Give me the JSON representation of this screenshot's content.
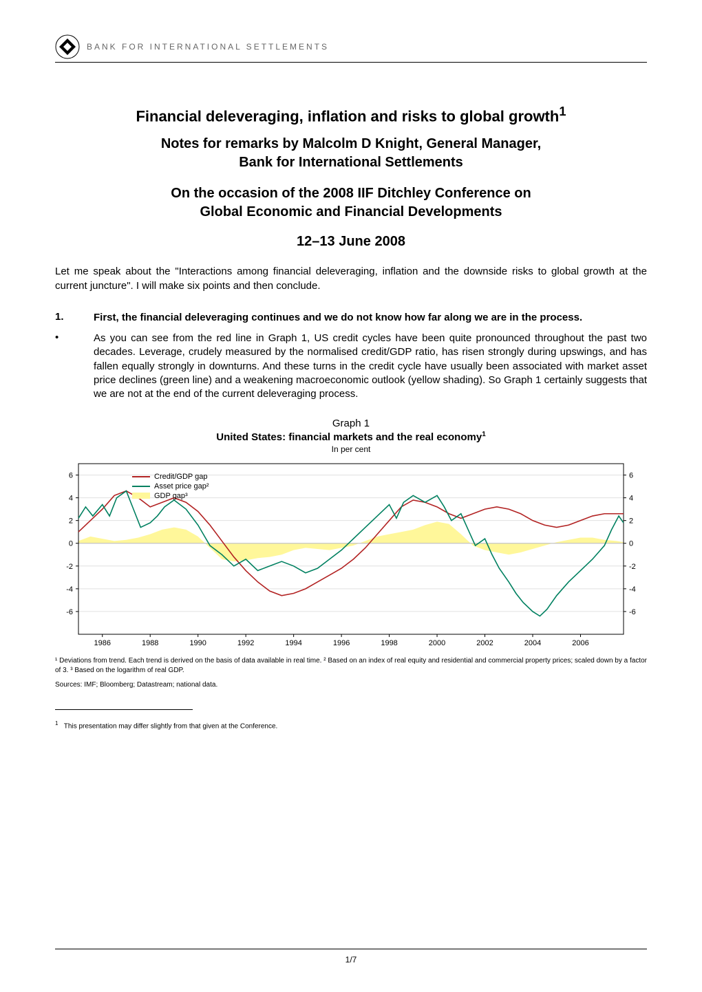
{
  "header": {
    "org_text": "BANK FOR INTERNATIONAL SETTLEMENTS"
  },
  "title": {
    "main": "Financial deleveraging, inflation and risks to global growth",
    "main_sup": "1",
    "subtitle_l1": "Notes for remarks by Malcolm D Knight, General Manager,",
    "subtitle_l2": "Bank for International Settlements",
    "occasion_l1": "On the occasion of the 2008 IIF Ditchley Conference on",
    "occasion_l2": "Global Economic and Financial Developments",
    "date": "12–13 June 2008"
  },
  "intro": "Let me speak about the \"Interactions among financial deleveraging, inflation and the downside risks to global growth at the current juncture\". I will make six points and then conclude.",
  "section1": {
    "num": "1.",
    "heading": "First, the financial deleveraging continues and we do not know how far along we are in the process.",
    "bullet": "As you can see from the red line in Graph 1, US credit cycles have been quite pronounced throughout the past two decades. Leverage, crudely measured by the normalised credit/GDP ratio, has risen strongly during upswings, and has fallen equally strongly in downturns. And these turns in the credit cycle have usually been associated with market asset price declines (green line) and a weakening macroeconomic outlook (yellow shading). So Graph 1 certainly suggests that we are not at the end of the current deleveraging process."
  },
  "graph": {
    "label": "Graph 1",
    "title": "United States: financial markets and the real economy",
    "title_sup": "1",
    "subtitle": "In per cent",
    "chart": {
      "type": "line",
      "background_color": "#ffffff",
      "plot_border_color": "#000000",
      "grid_color": "#e0e0e0",
      "axis_font_size": 11,
      "xlim": [
        1985,
        2007.8
      ],
      "x_ticks": [
        1986,
        1988,
        1990,
        1992,
        1994,
        1996,
        1998,
        2000,
        2002,
        2004,
        2006
      ],
      "ylim": [
        -8,
        7
      ],
      "y_ticks_left": [
        -6,
        -4,
        -2,
        0,
        2,
        4,
        6
      ],
      "y_ticks_right": [
        -6,
        -4,
        -2,
        0,
        2,
        4,
        6
      ],
      "gdp_band": {
        "label": "GDP gap³",
        "color": "#fff79a",
        "opacity": 1.0,
        "points": [
          [
            1985.0,
            0.2
          ],
          [
            1985.5,
            0.6
          ],
          [
            1986.0,
            0.4
          ],
          [
            1986.5,
            0.2
          ],
          [
            1987.0,
            0.3
          ],
          [
            1987.5,
            0.5
          ],
          [
            1988.0,
            0.8
          ],
          [
            1988.5,
            1.2
          ],
          [
            1989.0,
            1.4
          ],
          [
            1989.5,
            1.2
          ],
          [
            1990.0,
            0.6
          ],
          [
            1990.5,
            -0.4
          ],
          [
            1991.0,
            -1.4
          ],
          [
            1991.5,
            -1.6
          ],
          [
            1992.0,
            -1.5
          ],
          [
            1992.5,
            -1.3
          ],
          [
            1993.0,
            -1.2
          ],
          [
            1993.5,
            -1.0
          ],
          [
            1994.0,
            -0.6
          ],
          [
            1994.5,
            -0.4
          ],
          [
            1995.0,
            -0.5
          ],
          [
            1995.5,
            -0.6
          ],
          [
            1996.0,
            -0.4
          ],
          [
            1996.5,
            -0.2
          ],
          [
            1997.0,
            0.2
          ],
          [
            1997.5,
            0.6
          ],
          [
            1998.0,
            0.8
          ],
          [
            1998.5,
            1.0
          ],
          [
            1999.0,
            1.2
          ],
          [
            1999.5,
            1.6
          ],
          [
            2000.0,
            1.9
          ],
          [
            2000.5,
            1.7
          ],
          [
            2001.0,
            0.8
          ],
          [
            2001.5,
            -0.2
          ],
          [
            2002.0,
            -0.6
          ],
          [
            2002.5,
            -0.8
          ],
          [
            2003.0,
            -1.0
          ],
          [
            2003.5,
            -0.8
          ],
          [
            2004.0,
            -0.5
          ],
          [
            2004.5,
            -0.2
          ],
          [
            2005.0,
            0.1
          ],
          [
            2005.5,
            0.3
          ],
          [
            2006.0,
            0.5
          ],
          [
            2006.5,
            0.5
          ],
          [
            2007.0,
            0.3
          ],
          [
            2007.5,
            0.2
          ],
          [
            2007.8,
            0.1
          ]
        ]
      },
      "series": [
        {
          "label": "Credit/GDP gap",
          "color": "#b22222",
          "line_width": 1.6,
          "points": [
            [
              1985.0,
              1.0
            ],
            [
              1985.5,
              2.0
            ],
            [
              1986.0,
              3.0
            ],
            [
              1986.5,
              4.2
            ],
            [
              1987.0,
              4.6
            ],
            [
              1987.5,
              4.0
            ],
            [
              1988.0,
              3.2
            ],
            [
              1988.5,
              3.6
            ],
            [
              1989.0,
              4.0
            ],
            [
              1989.5,
              3.6
            ],
            [
              1990.0,
              2.8
            ],
            [
              1990.5,
              1.6
            ],
            [
              1991.0,
              0.2
            ],
            [
              1991.5,
              -1.2
            ],
            [
              1992.0,
              -2.4
            ],
            [
              1992.5,
              -3.4
            ],
            [
              1993.0,
              -4.2
            ],
            [
              1993.5,
              -4.6
            ],
            [
              1994.0,
              -4.4
            ],
            [
              1994.5,
              -4.0
            ],
            [
              1995.0,
              -3.4
            ],
            [
              1995.5,
              -2.8
            ],
            [
              1996.0,
              -2.2
            ],
            [
              1996.5,
              -1.4
            ],
            [
              1997.0,
              -0.4
            ],
            [
              1997.5,
              0.8
            ],
            [
              1998.0,
              2.0
            ],
            [
              1998.5,
              3.2
            ],
            [
              1999.0,
              3.8
            ],
            [
              1999.5,
              3.6
            ],
            [
              2000.0,
              3.2
            ],
            [
              2000.5,
              2.6
            ],
            [
              2001.0,
              2.2
            ],
            [
              2001.5,
              2.6
            ],
            [
              2002.0,
              3.0
            ],
            [
              2002.5,
              3.2
            ],
            [
              2003.0,
              3.0
            ],
            [
              2003.5,
              2.6
            ],
            [
              2004.0,
              2.0
            ],
            [
              2004.5,
              1.6
            ],
            [
              2005.0,
              1.4
            ],
            [
              2005.5,
              1.6
            ],
            [
              2006.0,
              2.0
            ],
            [
              2006.5,
              2.4
            ],
            [
              2007.0,
              2.6
            ],
            [
              2007.5,
              2.6
            ],
            [
              2007.8,
              2.6
            ]
          ]
        },
        {
          "label": "Asset price gap²",
          "color": "#008060",
          "line_width": 1.6,
          "points": [
            [
              1985.0,
              2.2
            ],
            [
              1985.3,
              3.2
            ],
            [
              1985.6,
              2.4
            ],
            [
              1986.0,
              3.4
            ],
            [
              1986.3,
              2.4
            ],
            [
              1986.6,
              4.0
            ],
            [
              1987.0,
              4.6
            ],
            [
              1987.3,
              3.0
            ],
            [
              1987.6,
              1.4
            ],
            [
              1988.0,
              1.8
            ],
            [
              1988.3,
              2.4
            ],
            [
              1988.6,
              3.2
            ],
            [
              1989.0,
              3.8
            ],
            [
              1989.5,
              3.0
            ],
            [
              1990.0,
              1.6
            ],
            [
              1990.5,
              -0.2
            ],
            [
              1991.0,
              -1.0
            ],
            [
              1991.5,
              -2.0
            ],
            [
              1992.0,
              -1.4
            ],
            [
              1992.5,
              -2.4
            ],
            [
              1993.0,
              -2.0
            ],
            [
              1993.5,
              -1.6
            ],
            [
              1994.0,
              -2.0
            ],
            [
              1994.5,
              -2.6
            ],
            [
              1995.0,
              -2.2
            ],
            [
              1995.5,
              -1.4
            ],
            [
              1996.0,
              -0.6
            ],
            [
              1996.5,
              0.4
            ],
            [
              1997.0,
              1.4
            ],
            [
              1997.5,
              2.4
            ],
            [
              1998.0,
              3.4
            ],
            [
              1998.3,
              2.2
            ],
            [
              1998.6,
              3.6
            ],
            [
              1999.0,
              4.2
            ],
            [
              1999.5,
              3.6
            ],
            [
              2000.0,
              4.2
            ],
            [
              2000.3,
              3.2
            ],
            [
              2000.6,
              2.0
            ],
            [
              2001.0,
              2.6
            ],
            [
              2001.3,
              1.2
            ],
            [
              2001.6,
              -0.2
            ],
            [
              2002.0,
              0.4
            ],
            [
              2002.3,
              -1.0
            ],
            [
              2002.6,
              -2.2
            ],
            [
              2003.0,
              -3.4
            ],
            [
              2003.3,
              -4.4
            ],
            [
              2003.6,
              -5.2
            ],
            [
              2004.0,
              -6.0
            ],
            [
              2004.3,
              -6.4
            ],
            [
              2004.6,
              -5.8
            ],
            [
              2005.0,
              -4.6
            ],
            [
              2005.5,
              -3.4
            ],
            [
              2006.0,
              -2.4
            ],
            [
              2006.5,
              -1.4
            ],
            [
              2007.0,
              -0.2
            ],
            [
              2007.3,
              1.2
            ],
            [
              2007.6,
              2.4
            ],
            [
              2007.8,
              1.8
            ]
          ]
        }
      ],
      "legend": {
        "position": "top-left-inset",
        "font_size": 11,
        "box_border": "#000000",
        "items": [
          {
            "swatch_type": "line",
            "color": "#b22222",
            "label": "Credit/GDP gap"
          },
          {
            "swatch_type": "line",
            "color": "#008060",
            "label": "Asset price gap²"
          },
          {
            "swatch_type": "rect",
            "color": "#fff79a",
            "label": "GDP gap³"
          }
        ]
      }
    },
    "footnote": "¹ Deviations from trend. Each trend is derived on the basis of data available in real time.    ² Based on an index of real equity and residential and commercial property prices; scaled down by a factor of 3.    ³ Based on the logarithm of real GDP.",
    "sources": "Sources: IMF; Bloomberg; Datastream; national data."
  },
  "page_footnote": {
    "num": "1",
    "text": "This presentation may differ slightly from that given at the Conference."
  },
  "page_number": "1/7"
}
